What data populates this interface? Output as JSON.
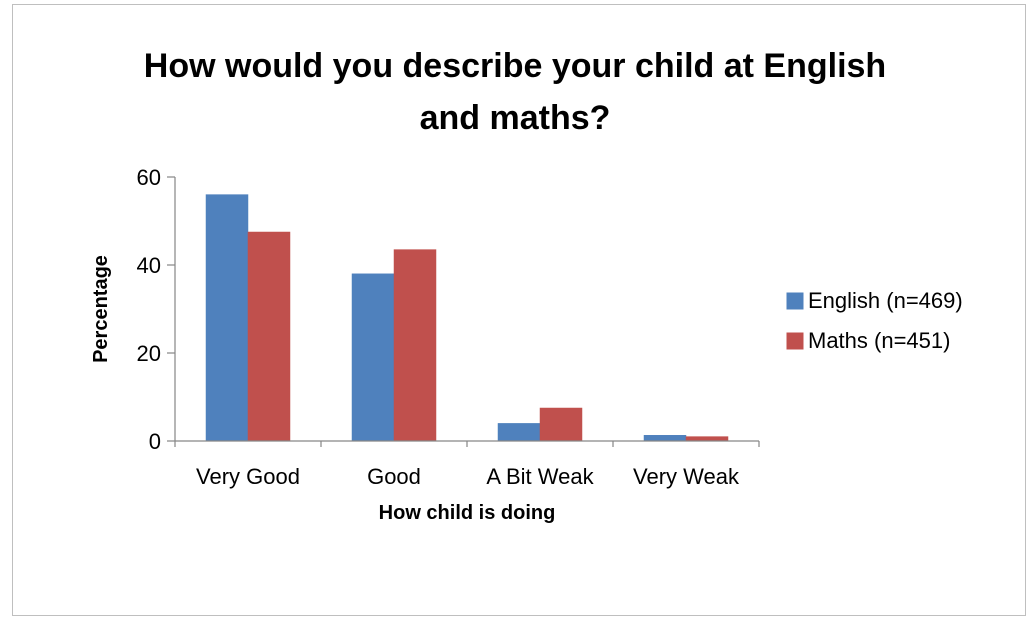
{
  "chart_data": {
    "type": "bar",
    "title_lines": [
      "How would you describe your child at English",
      "and maths?"
    ],
    "xlabel": "How child is doing",
    "ylabel": "Percentage",
    "categories": [
      "Very Good",
      "Good",
      "A Bit Weak",
      "Very Weak"
    ],
    "ylim": [
      0,
      60
    ],
    "yticks": [
      "0",
      "20",
      "40",
      "60"
    ],
    "grid": false,
    "legend": "right",
    "series": [
      {
        "name": "English (n=469)",
        "values": [
          56,
          38,
          4,
          1.3
        ],
        "color": "#4f81bd"
      },
      {
        "name": "Maths (n=451)",
        "values": [
          47.5,
          43.5,
          7.5,
          1
        ],
        "color": "#c0504d"
      }
    ]
  }
}
